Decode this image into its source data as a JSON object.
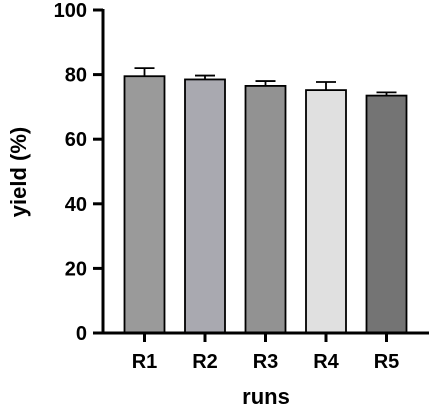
{
  "chart_data": {
    "type": "bar",
    "title": "",
    "xlabel": "runs",
    "ylabel": "yield (%)",
    "categories": [
      "R1",
      "R2",
      "R3",
      "R4",
      "R5"
    ],
    "values": [
      79.5,
      78.5,
      76.5,
      75.2,
      73.5
    ],
    "errors": [
      2.5,
      1.2,
      1.5,
      2.5,
      1.0
    ],
    "ylim": [
      0,
      100
    ],
    "yticks": [
      0,
      20,
      40,
      60,
      80,
      100
    ],
    "grid": false,
    "legend": "none",
    "bar_colors": [
      "#9a9a9a",
      "#a9a9b0",
      "#929292",
      "#e0e0e0",
      "#747474"
    ],
    "edge_color": "#000000"
  }
}
